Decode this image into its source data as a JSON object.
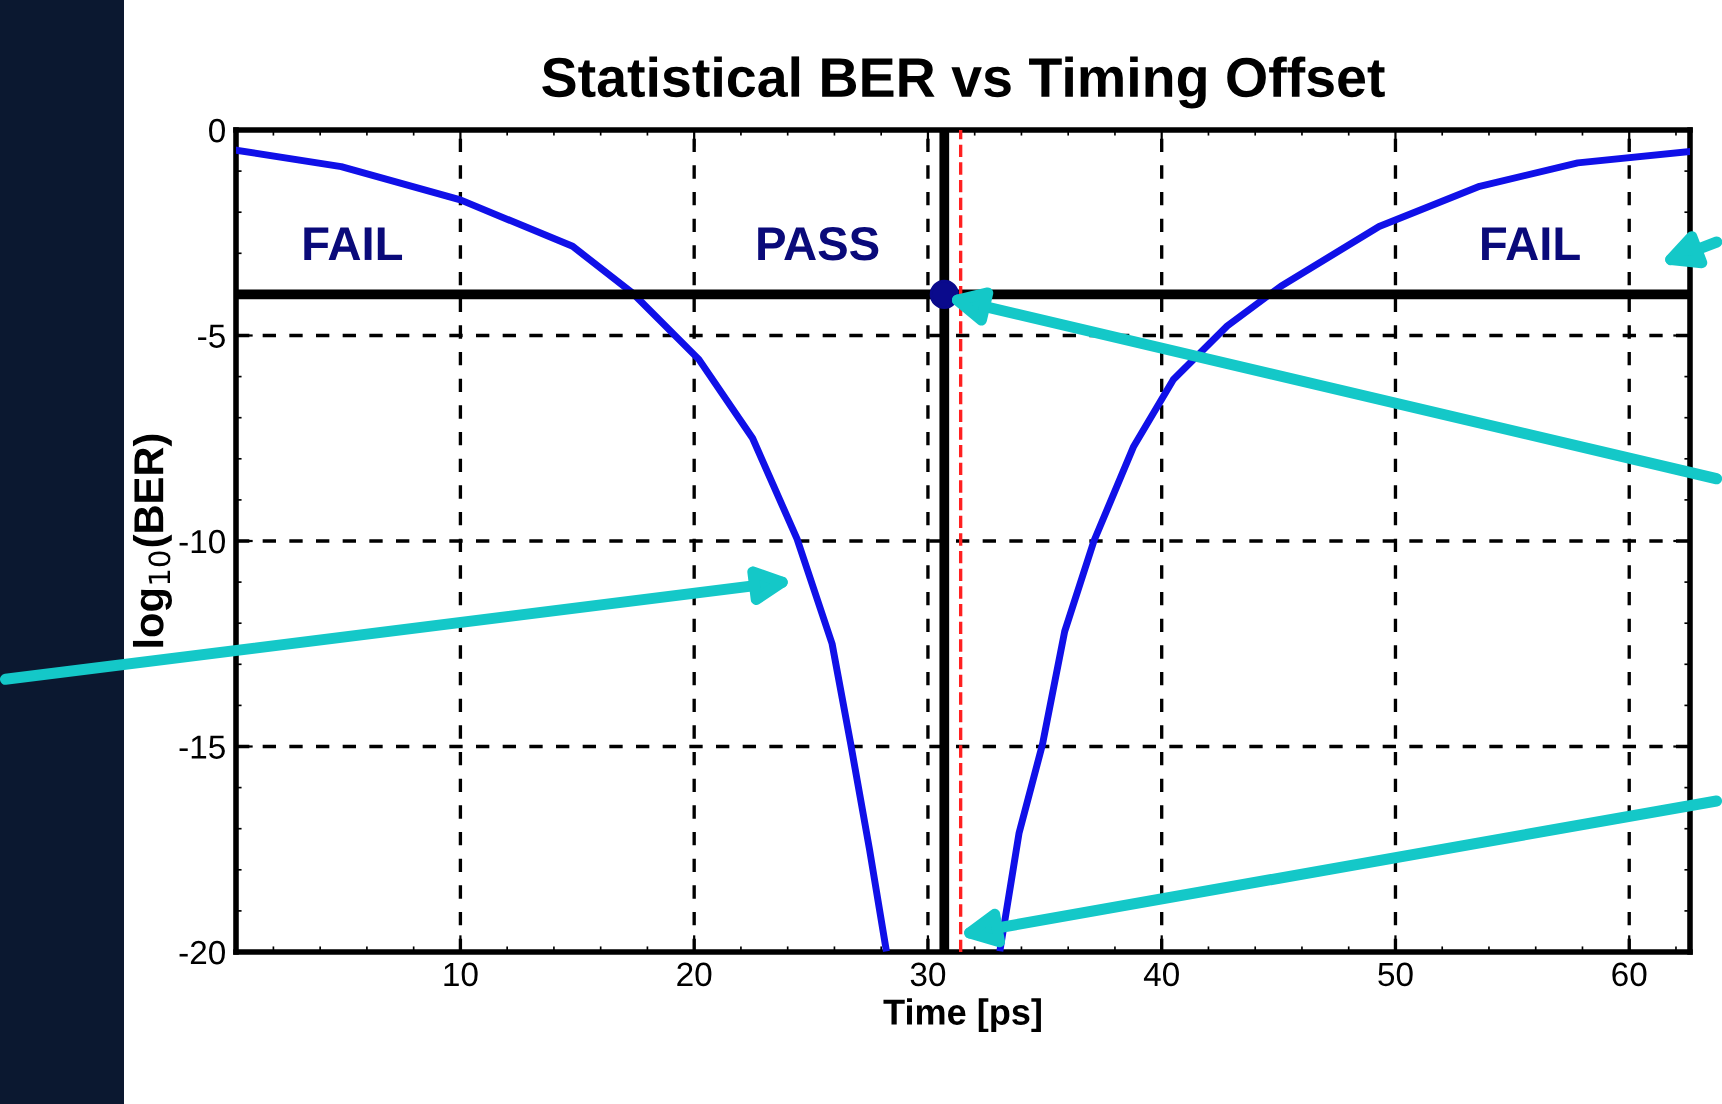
{
  "chart_data": {
    "type": "line",
    "title": "Statistical BER vs Timing Offset",
    "xlabel": "Time [ps]",
    "ylabel": "log$_{10}$(BER)",
    "xlim": [
      0.4,
      62.6
    ],
    "xticks": [
      10,
      20,
      30,
      40,
      50,
      60
    ],
    "ylim": [
      -20,
      0
    ],
    "yticks": [
      0,
      -5,
      -10,
      -15,
      -20
    ],
    "grid": true,
    "marker": "none",
    "line_style": "solid",
    "series": [
      {
        "color": "#1010e8",
        "x": [
          0.4,
          4.9,
          10,
          14.8,
          17.35,
          20.2,
          22.5,
          24.4,
          25.9,
          26.7,
          27.5,
          28.2
        ],
        "values": [
          -0.49,
          -0.89,
          -1.7,
          -2.83,
          -3.96,
          -5.58,
          -7.5,
          -9.95,
          -12.5,
          -14.95,
          -17.5,
          -19.9
        ]
      },
      {
        "color": "#1010e8",
        "x": [
          33.1,
          33.9,
          34.9,
          35.85,
          37.1,
          38.8,
          40.5,
          42.8,
          45.1,
          49.3,
          53.6,
          57.8,
          62.5
        ],
        "values": [
          -19.9,
          -17.1,
          -14.95,
          -12.2,
          -10,
          -7.7,
          -6.07,
          -4.77,
          -3.8,
          -2.35,
          -1.37,
          -0.8,
          -0.53
        ]
      },
      {
        "type": "scatter",
        "marker": "circle",
        "color": "#0a0a8c",
        "x": [
          30.7
        ],
        "values": [
          -4
        ]
      }
    ],
    "ref_lines": [
      {
        "axis": "y",
        "value": -4,
        "color": "#000000",
        "line_style": "solid"
      },
      {
        "axis": "x",
        "value": 30.7,
        "color": "#000000",
        "line_style": "solid"
      },
      {
        "axis": "x",
        "value": 31.4,
        "color": "#ff2020",
        "line_style": "dashed"
      }
    ],
    "annotations": [
      "FAIL",
      "PASS",
      "FAIL"
    ]
  }
}
